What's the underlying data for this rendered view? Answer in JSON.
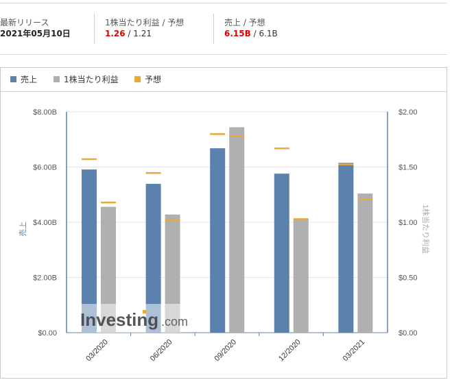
{
  "summary": {
    "latest_release": {
      "label": "最新リリース",
      "value": "2021年05月10日"
    },
    "eps": {
      "label": "1株当たり利益 / 予想",
      "actual": "1.26",
      "separator": " / ",
      "forecast": "1.21"
    },
    "revenue": {
      "label": "売上 / 予想",
      "actual": "6.15B",
      "separator": " / ",
      "forecast": "6.1B"
    }
  },
  "legend": {
    "items": [
      {
        "label": "売上",
        "color": "#5b82ad"
      },
      {
        "label": "1株当たり利益",
        "color": "#b0b0b0"
      },
      {
        "label": "予想",
        "color": "#e8a83a"
      }
    ]
  },
  "watermark": {
    "brand": "Investing",
    "suffix": ".com"
  },
  "colors": {
    "revenue": "#5b82ad",
    "eps": "#b0b0b0",
    "forecast": "#e8a83a",
    "axis": "#5b82ad"
  },
  "chart_data": {
    "type": "bar",
    "title": "",
    "categories": [
      "03/2020",
      "06/2020",
      "09/2020",
      "12/2020",
      "03/2021"
    ],
    "series": [
      {
        "name": "売上",
        "axis": "left",
        "unit": "B USD",
        "values": [
          5.91,
          5.39,
          6.68,
          5.76,
          6.15
        ]
      },
      {
        "name": "1株当たり利益",
        "axis": "right",
        "unit": "USD",
        "values": [
          1.14,
          1.07,
          1.86,
          1.03,
          1.26
        ]
      },
      {
        "name": "予想 (売上)",
        "axis": "left",
        "unit": "B USD",
        "values": [
          6.29,
          5.79,
          7.2,
          6.68,
          6.1
        ]
      },
      {
        "name": "予想 (1株当たり利益)",
        "axis": "right",
        "unit": "USD",
        "values": [
          1.18,
          1.02,
          1.78,
          1.03,
          1.21
        ]
      }
    ],
    "left_axis": {
      "label": "売上",
      "ticks": [
        "$0.00",
        "$2.00B",
        "$4.00B",
        "$6.00B",
        "$8.00B"
      ],
      "range": [
        0,
        8
      ]
    },
    "right_axis": {
      "label": "1株当たり利益",
      "ticks": [
        "$0.00",
        "$0.50",
        "$1.00",
        "$1.50",
        "$2.00"
      ],
      "range": [
        0,
        2
      ]
    },
    "grid": true,
    "legend_position": "top-left"
  }
}
